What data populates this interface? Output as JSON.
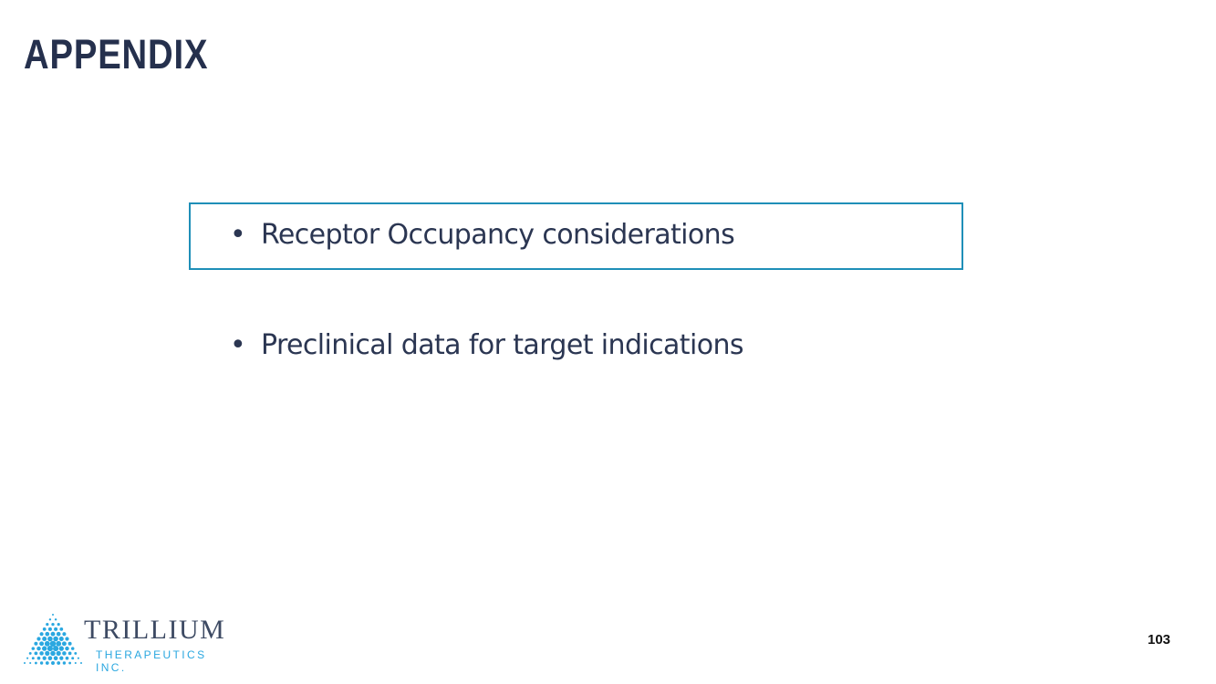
{
  "title": "APPENDIX",
  "bullets": [
    {
      "text": "Receptor Occupancy considerations",
      "highlighted": true
    },
    {
      "text": "Preclinical data for target indications",
      "highlighted": false
    }
  ],
  "bullet_symbol": "•",
  "logo": {
    "name": "TRILLIUM",
    "subtitle": "THERAPEUTICS INC.",
    "icon": "dotted-triangle-logo-icon",
    "color": "#2aa7e0"
  },
  "page_number": "103",
  "colors": {
    "title": "#25304d",
    "box_border": "#1f8fb8",
    "text": "#2b3652"
  }
}
